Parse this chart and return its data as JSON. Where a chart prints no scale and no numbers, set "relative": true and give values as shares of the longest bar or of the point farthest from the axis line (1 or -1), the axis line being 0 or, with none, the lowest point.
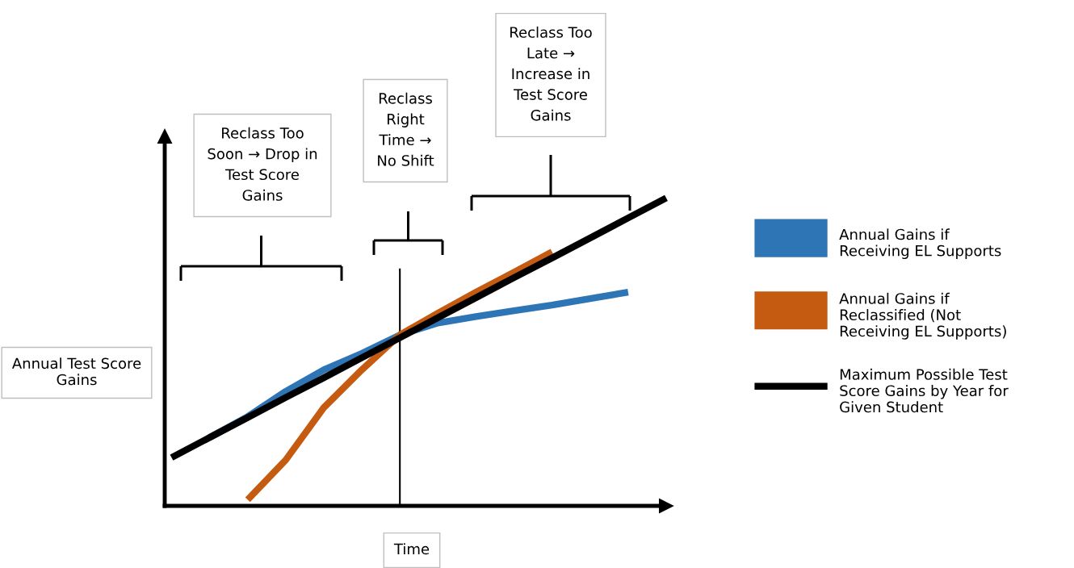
{
  "chart_data": {
    "type": "line",
    "relative": true,
    "xlabel": "Time",
    "ylabel": "Annual Test Score Gains",
    "legend": "right",
    "categories": [
      null,
      null,
      null,
      null,
      null,
      null,
      null,
      null,
      null,
      null,
      null,
      null,
      null,
      null
    ],
    "series": [
      {
        "name": "Annual Gains if Receiving EL Supports",
        "color": "#2e75b6",
        "values": [
          null,
          0.222,
          0.29,
          0.372,
          0.442,
          0.495,
          0.555,
          0.594,
          0.615,
          0.634,
          0.652,
          0.673,
          0.694,
          null
        ]
      },
      {
        "name": "Annual Gains if Reclassified (Not Receiving EL Supports)",
        "color": "#c55a11",
        "values": [
          null,
          null,
          0.02,
          0.149,
          0.319,
          0.442,
          0.555,
          0.626,
          0.694,
          0.759,
          0.825,
          null,
          null,
          null
        ]
      },
      {
        "name": "Maximum Possible Test Score Gains by Year for Given Student",
        "color": "#000000",
        "values": [
          0.157,
          0.222,
          0.287,
          0.352,
          0.416,
          0.481,
          0.546,
          0.611,
          0.676,
          0.741,
          0.805,
          0.87,
          0.935,
          1.0
        ]
      }
    ],
    "annotations": [
      "Reclass Too Soon → Drop in Test Score Gains",
      "Reclass Right Time → No Shift",
      "Reclass Too Late → Increase in Test Score Gains"
    ]
  }
}
